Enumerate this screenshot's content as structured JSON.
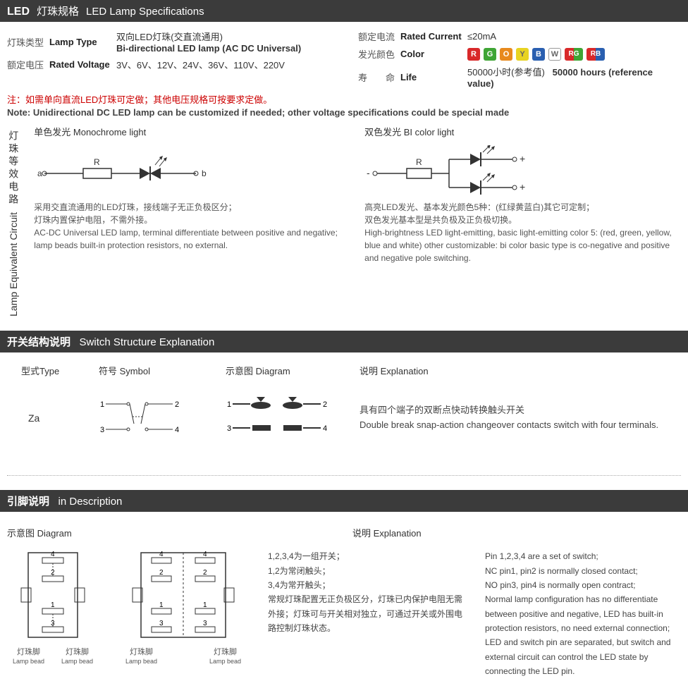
{
  "colors": {
    "header_bg": "#3b3b3b",
    "header_fg": "#ffffff",
    "text": "#333333",
    "muted": "#555555",
    "note_red": "#cc0000"
  },
  "sec1": {
    "lead": "LED",
    "title_cn": "灯珠规格",
    "title_en": "LED Lamp Specifications",
    "rows_left": [
      {
        "cn": "灯珠类型",
        "en": "Lamp Type",
        "val_cn": "双向LED灯珠(交直流通用)",
        "val_en": "Bi-directional LED lamp (AC DC Universal)"
      },
      {
        "cn": "额定电压",
        "en": "Rated Voltage",
        "val": "3V、6V、12V、24V、36V、110V、220V"
      }
    ],
    "rows_right": [
      {
        "cn": "额定电流",
        "en": "Rated Current",
        "val": "≤20mA"
      },
      {
        "cn": "发光颜色",
        "en": "Color"
      },
      {
        "cn": "寿　　命",
        "en": "Life",
        "val_cn": "50000小时(参考值)",
        "val_en": "50000 hours (reference value)"
      }
    ],
    "color_badges": [
      {
        "t": "R",
        "bg": "#d9292a"
      },
      {
        "t": "G",
        "bg": "#3fa535"
      },
      {
        "t": "O",
        "bg": "#e88a1e"
      },
      {
        "t": "Y",
        "bg": "#e8d321",
        "fg": "#666"
      },
      {
        "t": "B",
        "bg": "#2a5fb0"
      },
      {
        "t": "W",
        "bg": "#ffffff",
        "fg": "#666",
        "border": "#999"
      },
      {
        "t": "RG",
        "bg": "linear-gradient(90deg,#d9292a 50%,#3fa535 50%)"
      },
      {
        "t": "RB",
        "bg": "linear-gradient(90deg,#d9292a 50%,#2a5fb0 50%)"
      }
    ],
    "note_cn": "注：如需单向直流LED灯珠可定做；其他电压规格可按要求定做。",
    "note_en": "Note: Unidirectional DC LED lamp can be customized if needed; other voltage specifications could be special made"
  },
  "circuit": {
    "vlabel_cn": "灯珠等效电路",
    "vlabel_en": "Lamp Equivalent Circuit",
    "left": {
      "title": "单色发光 Monochrome light",
      "desc_cn1": "采用交直流通用的LED灯珠，接线端子无正负极区分；",
      "desc_cn2": "灯珠内置保护电阻，不需外接。",
      "desc_en": "AC-DC Universal LED lamp, terminal differentiate between positive and negative; lamp beads built-in protection resistors, no external."
    },
    "right": {
      "title": "双色发光 BI color light",
      "desc_cn1": "高亮LED发光、基本发光颜色5种：(红绿黄蓝白)其它可定制；",
      "desc_cn2": "双色发光基本型是共负极及正负极切换。",
      "desc_en": "High-brightness LED light-emitting, basic light-emitting color 5: (red, green, yellow, blue and white) other customizable: bi color basic type is co-negative and positive and negative pole switching."
    }
  },
  "sec2": {
    "title_cn": "开关结构说明",
    "title_en": "Switch Structure Explanation",
    "hdr": {
      "type": "型式Type",
      "symbol": "符号 Symbol",
      "diagram": "示意图 Diagram",
      "explain": "说明 Explanation"
    },
    "row": {
      "type": "Za",
      "explain_cn": "具有四个端子的双断点快动转换触头开关",
      "explain_en": "Double break snap-action changeover contacts switch with four terminals."
    }
  },
  "sec3": {
    "title_cn": "引脚说明",
    "title_en": "in Description",
    "diagram_hdr": "示意图 Diagram",
    "explain_hdr": "说明 Explanation",
    "lamp_bead_cn": "灯珠脚",
    "lamp_bead_en": "Lamp bead",
    "explain_cn": "1,2,3,4为一组开关；\n1,2为常闭触头；\n3,4为常开触头；\n常规灯珠配置无正负极区分，灯珠已内保护电阻无需外接；灯珠可与开关相对独立，可通过开关或外围电路控制灯珠状态。",
    "explain_en": "Pin 1,2,3,4 are a set of switch;\nNC pin1, pin2 is normally closed contact;\nNO pin3, pin4 is normally open contract;\nNormal lamp configuration has no differentiate between positive and negative, LED has built-in protection resistors, no need external connection;\nLED and switch pin are separated, but switch and external circuit can control the LED state by connecting the LED pin."
  }
}
